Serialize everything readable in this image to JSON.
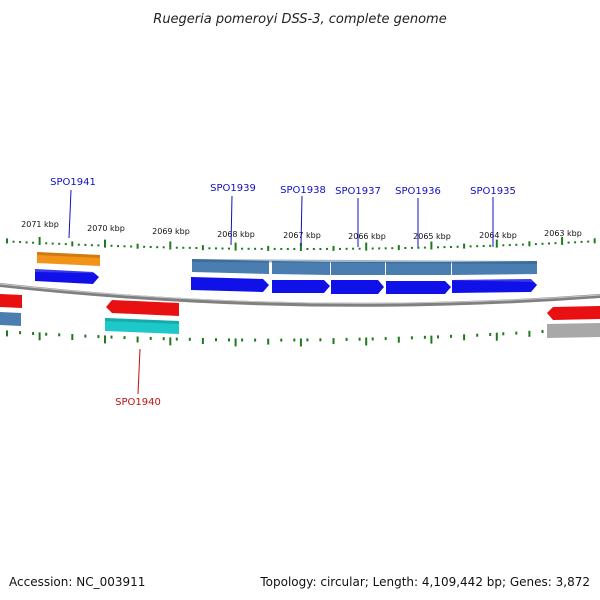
{
  "title": "Ruegeria pomeroyi DSS-3, complete genome",
  "footer": {
    "accession": "Accession: NC_003911",
    "stats": "Topology: circular; Length: 4,109,442 bp; Genes: 3,872"
  },
  "colors": {
    "forward_cds": "#1010e8",
    "reverse_cds": "#e81010",
    "gene_blue_gray": "#4a7db0",
    "gene_orange": "#f39418",
    "gene_cyan": "#1ec8c8",
    "gene_gray": "#a8a8a8",
    "backbone": "#808080",
    "ticks": "#1e7a1e",
    "label_forward": "#1010c0",
    "label_reverse": "#c01010"
  },
  "kbp_labels": [
    "2071 kbp",
    "2070 kbp",
    "2069 kbp",
    "2068 kbp",
    "2067 kbp",
    "2066 kbp",
    "2065 kbp",
    "2064 kbp",
    "2063 kbp"
  ],
  "gene_labels": [
    {
      "name": "SPO1941",
      "strand": "forward"
    },
    {
      "name": "SPO1939",
      "strand": "forward"
    },
    {
      "name": "SPO1938",
      "strand": "forward"
    },
    {
      "name": "SPO1937",
      "strand": "forward"
    },
    {
      "name": "SPO1936",
      "strand": "forward"
    },
    {
      "name": "SPO1935",
      "strand": "forward"
    },
    {
      "name": "SPO1940",
      "strand": "reverse"
    }
  ]
}
